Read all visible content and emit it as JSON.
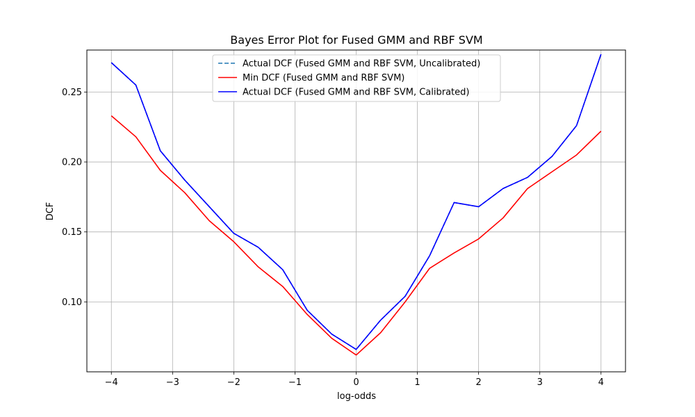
{
  "chart_data": {
    "type": "line",
    "title": "Bayes Error Plot for Fused GMM and RBF SVM",
    "xlabel": "log-odds",
    "ylabel": "DCF",
    "xlim": [
      -4.4,
      4.4
    ],
    "ylim": [
      0.05,
      0.28
    ],
    "xticks": [
      -4,
      -3,
      -2,
      -1,
      0,
      1,
      2,
      3,
      4
    ],
    "xtick_labels": [
      "−4",
      "−3",
      "−2",
      "−1",
      "0",
      "1",
      "2",
      "3",
      "4"
    ],
    "yticks": [
      0.1,
      0.15,
      0.2,
      0.25
    ],
    "ytick_labels": [
      "0.10",
      "0.15",
      "0.20",
      "0.25"
    ],
    "grid": true,
    "legend_position": "top-center",
    "x": [
      -4.0,
      -3.6,
      -3.2,
      -2.8,
      -2.4,
      -2.0,
      -1.6,
      -1.2,
      -0.8,
      -0.4,
      0.0,
      0.4,
      0.8,
      1.2,
      1.6,
      2.0,
      2.4,
      2.8,
      3.2,
      3.6,
      4.0
    ],
    "series": [
      {
        "name": "Actual DCF (Fused GMM and RBF SVM, Uncalibrated)",
        "color": "#1f77b4",
        "dash": "dashed",
        "values": [
          0.271,
          0.255,
          0.208,
          0.187,
          0.168,
          0.149,
          0.139,
          0.123,
          0.094,
          0.077,
          0.066,
          0.087,
          0.104,
          0.133,
          0.171,
          0.168,
          0.181,
          0.189,
          0.204,
          0.226,
          0.277
        ]
      },
      {
        "name": "Min DCF (Fused GMM and RBF SVM)",
        "color": "#ff0000",
        "dash": "solid",
        "values": [
          0.233,
          0.218,
          0.194,
          0.178,
          0.158,
          0.143,
          0.125,
          0.111,
          0.091,
          0.074,
          0.062,
          0.078,
          0.1,
          0.124,
          0.135,
          0.145,
          0.16,
          0.181,
          0.193,
          0.205,
          0.222
        ]
      },
      {
        "name": "Actual DCF (Fused GMM and RBF SVM, Calibrated)",
        "color": "#0000ff",
        "dash": "solid",
        "values": [
          0.271,
          0.255,
          0.208,
          0.187,
          0.168,
          0.149,
          0.139,
          0.123,
          0.094,
          0.077,
          0.066,
          0.087,
          0.104,
          0.133,
          0.171,
          0.168,
          0.181,
          0.189,
          0.204,
          0.226,
          0.277
        ]
      }
    ]
  }
}
